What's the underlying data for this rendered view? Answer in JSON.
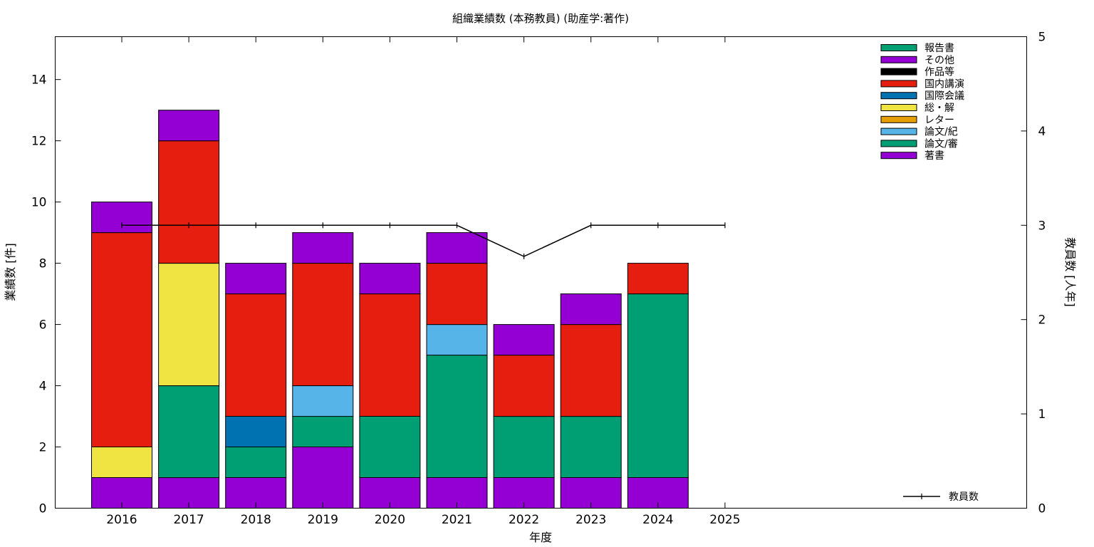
{
  "chart_data": {
    "type": "bar",
    "title": "組織業績数 (本務教員) (助産学:著作)",
    "xlabel": "年度",
    "ylabel": "業績数 [件]",
    "y2label": "教員数 [人年]",
    "categories": [
      "2016",
      "2017",
      "2018",
      "2019",
      "2020",
      "2021",
      "2022",
      "2023",
      "2024",
      "2025"
    ],
    "ylim": [
      0,
      15.4
    ],
    "y2lim": [
      0,
      5
    ],
    "yticks": [
      0,
      2,
      4,
      6,
      8,
      10,
      12,
      14
    ],
    "y2ticks": [
      0,
      1,
      2,
      3,
      4,
      5
    ],
    "legend_position": "top-right",
    "series": [
      {
        "name": "著書",
        "color": "#9400d3",
        "values": [
          1,
          1,
          1,
          2,
          1,
          1,
          1,
          1,
          1,
          0
        ]
      },
      {
        "name": "論文/審",
        "color": "#009e73",
        "values": [
          0,
          3,
          1,
          1,
          2,
          4,
          2,
          2,
          6,
          0
        ]
      },
      {
        "name": "論文/紀",
        "color": "#56b4e9",
        "values": [
          0,
          0,
          0,
          1,
          0,
          1,
          0,
          0,
          0,
          0
        ]
      },
      {
        "name": "レター",
        "color": "#e69f00",
        "values": [
          0,
          0,
          0,
          0,
          0,
          0,
          0,
          0,
          0,
          0
        ]
      },
      {
        "name": "総・解",
        "color": "#f0e442",
        "values": [
          1,
          4,
          0,
          0,
          0,
          0,
          0,
          0,
          0,
          0
        ]
      },
      {
        "name": "国際会議",
        "color": "#0072b2",
        "values": [
          0,
          0,
          1,
          0,
          0,
          0,
          0,
          0,
          0,
          0
        ]
      },
      {
        "name": "国内講演",
        "color": "#e51e10",
        "values": [
          7,
          4,
          4,
          4,
          4,
          2,
          2,
          3,
          1,
          0
        ]
      },
      {
        "name": "作品等",
        "color": "#000000",
        "values": [
          0,
          0,
          0,
          0,
          0,
          0,
          0,
          0,
          0,
          0
        ]
      },
      {
        "name": "その他",
        "color": "#9400d3",
        "values": [
          1,
          1,
          1,
          1,
          1,
          1,
          1,
          1,
          0,
          0
        ]
      },
      {
        "name": "報告書",
        "color": "#009e73",
        "values": [
          0,
          0,
          0,
          0,
          0,
          0,
          0,
          0,
          0,
          0
        ]
      }
    ],
    "line_series": {
      "name": "教員数",
      "color": "#000000",
      "axis": "y2",
      "values": [
        3,
        3,
        3,
        3,
        3,
        3,
        2.67,
        3,
        3,
        3
      ]
    }
  }
}
